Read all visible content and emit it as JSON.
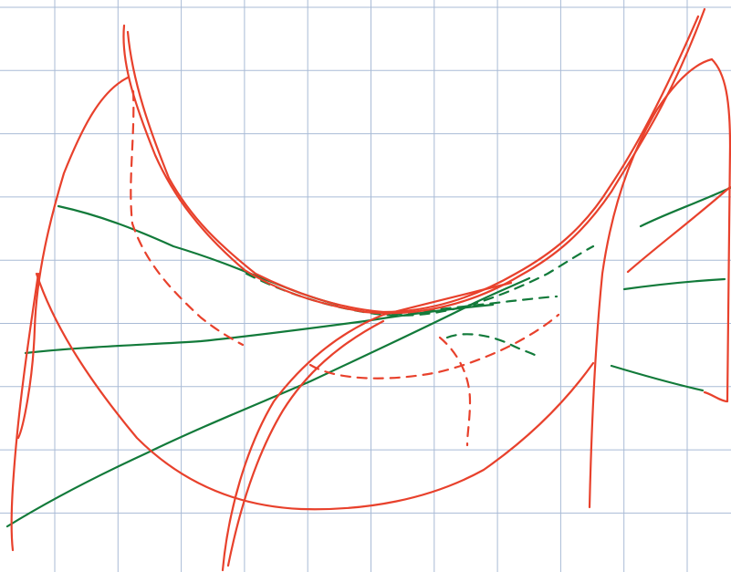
{
  "page": {
    "background": "#ffffff"
  },
  "grid": {
    "color": "#a9bbd6",
    "show": true
  },
  "sketch": {
    "ink_colors": {
      "red": "#e8412c",
      "green": "#127a3a"
    }
  }
}
